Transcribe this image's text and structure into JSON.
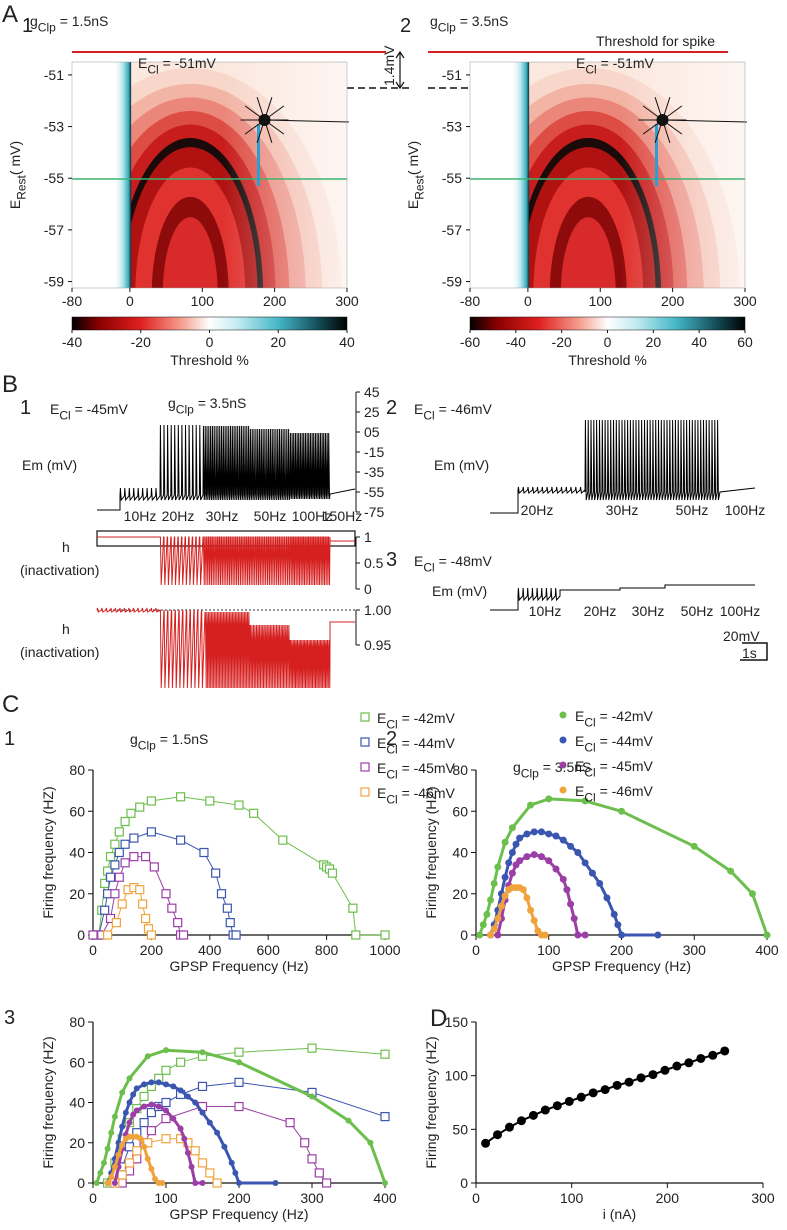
{
  "panel_labels": {
    "A": "A",
    "A1": "1",
    "A2": "2",
    "B": "B",
    "B1": "1",
    "B2": "2",
    "B3": "3",
    "C": "C",
    "C1": "1",
    "C2": "2",
    "C3": "3",
    "D": "D"
  },
  "annotations": {
    "threshold": "Threshold for spike",
    "shift": "1.4mV"
  },
  "scale_bar": {
    "voltage": "20mV",
    "time": "1s"
  },
  "chart_data": [
    {
      "type": "heatmap",
      "title": {
        "pre": "g",
        "sub": "Clp",
        "post": " = 1.5nS"
      },
      "annotation": {
        "pre": "E",
        "sub": "Cl",
        "post": " = -51mV"
      },
      "ylabel": {
        "pre": "E",
        "sub": "Rest",
        "post": "( mV)"
      },
      "xlim": [
        -80,
        300
      ],
      "xticks": [
        -80,
        0,
        100,
        200,
        300
      ],
      "ylim": [
        -59.25,
        -50.5
      ],
      "yticks": [
        -51,
        -53,
        -55,
        -57,
        -59
      ],
      "colorbar": {
        "label": "Threshold %",
        "lim": [
          -40,
          40
        ],
        "ticks": [
          -40,
          -20,
          0,
          20,
          40
        ]
      }
    },
    {
      "type": "heatmap",
      "title": {
        "pre": "g",
        "sub": "Clp",
        "post": " = 3.5nS"
      },
      "annotation": {
        "pre": "E",
        "sub": "Cl",
        "post": " = -51mV"
      },
      "ylabel": {
        "pre": "E",
        "sub": "Rest",
        "post": "( mV)"
      },
      "xlim": [
        -80,
        300
      ],
      "xticks": [
        -80,
        0,
        100,
        200,
        300
      ],
      "ylim": [
        -59.25,
        -50.5
      ],
      "yticks": [
        -51,
        -53,
        -55,
        -57,
        -59
      ],
      "colorbar": {
        "label": "Threshold %",
        "lim": [
          -60,
          60
        ],
        "ticks": [
          -60,
          -40,
          -20,
          0,
          20,
          40,
          60
        ]
      }
    },
    {
      "type": "trace",
      "title": {
        "pre": "E",
        "sub": "Cl",
        "post": " = -45mV"
      },
      "subtitle": {
        "pre": "g",
        "sub": "Clp",
        "post": " = 3.5nS"
      },
      "ylabel": "Em (mV)",
      "ylim": [
        -75,
        45
      ],
      "yticks": [
        45,
        25,
        {
          "value": 5,
          "label": "05"
        },
        -15,
        -35,
        -55,
        -75
      ],
      "stimulus_labels": [
        "10Hz",
        "20Hz",
        "30Hz",
        "50Hz",
        "100Hz",
        "150Hz"
      ]
    },
    {
      "type": "trace",
      "ylabel": [
        "h",
        "(inactivation)"
      ],
      "ylim": [
        0,
        1
      ],
      "yticks": [
        1,
        0.5,
        0
      ]
    },
    {
      "type": "trace",
      "ylabel": [
        "h",
        "(inactivation)"
      ],
      "ylim": [
        0.9,
        1.0
      ],
      "yticks": [
        {
          "value": 1,
          "label": "1.00"
        },
        0.95
      ]
    },
    {
      "type": "trace",
      "title": {
        "pre": "E",
        "sub": "Cl",
        "post": " = -46mV"
      },
      "ylabel": "Em (mV)",
      "stimulus_labels": [
        "20Hz",
        "30Hz",
        "50Hz",
        "100Hz"
      ]
    },
    {
      "type": "trace",
      "title": {
        "pre": "E",
        "sub": "Cl",
        "post": " = -48mV"
      },
      "ylabel": "Em (mV)",
      "stimulus_labels": [
        "10Hz",
        "20Hz",
        "30Hz",
        "50Hz",
        "100Hz"
      ]
    },
    {
      "type": "line",
      "title": {
        "pre": "g",
        "sub": "Clp",
        "post": " = 1.5nS"
      },
      "xlabel": "GPSP Frequency (Hz)",
      "ylabel": "Firing frequency (HZ)",
      "xlim": [
        0,
        1000
      ],
      "xticks": [
        0,
        200,
        400,
        600,
        800,
        1000
      ],
      "ylim": [
        0,
        80
      ],
      "yticks": [
        0,
        20,
        40,
        60,
        80
      ],
      "legend": "upper right",
      "series": [
        {
          "name": {
            "pre": "E",
            "sub": "Cl",
            "post": " = -42mV"
          },
          "color": "#6cbf4c",
          "marker": "open-square",
          "line_width": 1,
          "x": [
            20,
            30,
            40,
            50,
            60,
            75,
            90,
            110,
            130,
            160,
            200,
            300,
            400,
            500,
            550,
            650,
            790,
            800,
            810,
            820,
            890,
            900,
            1000
          ],
          "values": [
            0,
            12,
            25,
            31,
            38,
            44,
            50,
            55,
            59,
            62,
            65,
            67,
            65,
            63,
            59,
            46,
            34,
            33,
            32,
            30,
            13,
            0,
            0
          ]
        },
        {
          "name": {
            "pre": "E",
            "sub": "Cl",
            "post": " = -44mV"
          },
          "color": "#3b56b0",
          "marker": "open-square",
          "line_width": 1,
          "x": [
            10,
            20,
            40,
            50,
            60,
            75,
            90,
            110,
            140,
            200,
            300,
            380,
            420,
            440,
            460,
            470,
            480,
            490
          ],
          "values": [
            0,
            0,
            12,
            20,
            28,
            34,
            40,
            44,
            47,
            50,
            46,
            40,
            30,
            20,
            13,
            6,
            0,
            0
          ]
        },
        {
          "name": {
            "pre": "E",
            "sub": "Cl",
            "post": " = -45mV"
          },
          "color": "#9b3fa6",
          "marker": "open-square",
          "line_width": 1,
          "x": [
            0,
            30,
            60,
            75,
            90,
            110,
            140,
            180,
            210,
            250,
            270,
            290,
            300,
            310
          ],
          "values": [
            0,
            0,
            8,
            20,
            28,
            35,
            38,
            38,
            33,
            20,
            13,
            6,
            0,
            0
          ]
        },
        {
          "name": {
            "pre": "E",
            "sub": "Cl",
            "post": " = -46mV"
          },
          "color": "#f0a33b",
          "marker": "open-square",
          "line_width": 1,
          "x": [
            50,
            80,
            100,
            120,
            140,
            160,
            170,
            180,
            190,
            200
          ],
          "values": [
            0,
            6,
            15,
            22,
            23,
            22,
            15,
            8,
            3,
            0
          ]
        }
      ]
    },
    {
      "type": "line",
      "title": {
        "pre": "g",
        "sub": "Clp",
        "post": " = 3.5nS"
      },
      "xlabel": "GPSP Frequency (Hz)",
      "ylabel": "Firing frequency (HZ)",
      "xlim": [
        0,
        400
      ],
      "xticks": [
        0,
        100,
        200,
        300,
        400
      ],
      "ylim": [
        0,
        80
      ],
      "yticks": [
        0,
        20,
        40,
        60,
        80
      ],
      "legend": "upper right",
      "series": [
        {
          "name": {
            "pre": "E",
            "sub": "Cl",
            "post": " = -42mV"
          },
          "color": "#6cbf4c",
          "marker": "filled-circle",
          "line_width": 3,
          "x": [
            5,
            10,
            15,
            20,
            25,
            30,
            40,
            50,
            75,
            100,
            150,
            200,
            300,
            350,
            380,
            400
          ],
          "values": [
            0,
            5,
            10,
            17,
            25,
            33,
            45,
            52,
            63,
            66,
            65,
            60,
            43,
            31,
            20,
            0
          ]
        },
        {
          "name": {
            "pre": "E",
            "sub": "Cl",
            "post": " = -44mV"
          },
          "color": "#3b56b0",
          "marker": "filled-circle",
          "line_width": 3,
          "x": [
            20,
            25,
            30,
            35,
            40,
            45,
            50,
            55,
            60,
            70,
            80,
            90,
            100,
            110,
            120,
            130,
            140,
            150,
            160,
            170,
            180,
            190,
            195,
            200,
            250
          ],
          "values": [
            0,
            5,
            12,
            20,
            28,
            35,
            40,
            44,
            47,
            49,
            50,
            50,
            49,
            48,
            46,
            43,
            40,
            35,
            30,
            25,
            18,
            10,
            5,
            0,
            0
          ]
        },
        {
          "name": {
            "pre": "E",
            "sub": "Cl",
            "post": " = -45mV"
          },
          "color": "#9b3fa6",
          "marker": "filled-circle",
          "line_width": 3,
          "x": [
            30,
            35,
            40,
            45,
            50,
            55,
            60,
            70,
            80,
            90,
            100,
            110,
            120,
            125,
            130,
            135,
            140,
            150
          ],
          "values": [
            0,
            8,
            17,
            24,
            30,
            34,
            36,
            38,
            39,
            38,
            36,
            32,
            27,
            22,
            15,
            8,
            0,
            0
          ]
        },
        {
          "name": {
            "pre": "E",
            "sub": "Cl",
            "post": " = -46mV"
          },
          "color": "#f0a33b",
          "marker": "filled-circle",
          "line_width": 3,
          "x": [
            20,
            25,
            30,
            35,
            40,
            45,
            50,
            55,
            60,
            65,
            70,
            75,
            80,
            85,
            90,
            95
          ],
          "values": [
            0,
            3,
            8,
            14,
            19,
            22,
            23,
            23,
            23,
            22,
            18,
            12,
            7,
            2,
            0,
            0
          ]
        }
      ]
    },
    {
      "type": "line",
      "xlabel": "GPSP Frequency (Hz)",
      "ylabel": "Firing frequency (HZ)",
      "xlim": [
        0,
        400
      ],
      "xticks": [
        0,
        100,
        200,
        300,
        400
      ],
      "ylim": [
        0,
        80
      ],
      "yticks": [
        0,
        20,
        40,
        60,
        80
      ],
      "series": [
        {
          "color": "#6cbf4c",
          "marker": "open-square",
          "line_width": 1,
          "x": [
            20,
            30,
            40,
            50,
            60,
            70,
            80,
            90,
            100,
            120,
            150,
            200,
            300,
            400
          ],
          "values": [
            0,
            10,
            22,
            30,
            37,
            43,
            48,
            52,
            56,
            60,
            63,
            65,
            67,
            64
          ]
        },
        {
          "color": "#3b56b0",
          "marker": "open-square",
          "line_width": 1,
          "x": [
            30,
            40,
            50,
            60,
            70,
            80,
            90,
            100,
            120,
            150,
            200,
            300,
            400
          ],
          "values": [
            0,
            8,
            18,
            25,
            30,
            35,
            38,
            40,
            44,
            48,
            50,
            45,
            33
          ]
        },
        {
          "color": "#9b3fa6",
          "marker": "open-square",
          "line_width": 1,
          "x": [
            40,
            50,
            60,
            70,
            80,
            100,
            150,
            200,
            270,
            290,
            300,
            310,
            320
          ],
          "values": [
            0,
            6,
            12,
            20,
            26,
            32,
            38,
            38,
            30,
            20,
            12,
            5,
            0
          ]
        },
        {
          "color": "#f0a33b",
          "marker": "open-square",
          "line_width": 1,
          "x": [
            30,
            40,
            50,
            60,
            75,
            100,
            120,
            130,
            140,
            150,
            160,
            170
          ],
          "values": [
            0,
            4,
            10,
            16,
            20,
            22,
            22,
            20,
            16,
            10,
            5,
            0
          ]
        },
        {
          "color": "#6cbf4c",
          "marker": "filled-circle",
          "line_width": 3,
          "x": [
            5,
            10,
            15,
            20,
            25,
            30,
            40,
            50,
            75,
            100,
            150,
            200,
            300,
            350,
            380,
            400
          ],
          "values": [
            0,
            5,
            10,
            17,
            25,
            33,
            45,
            52,
            63,
            66,
            65,
            60,
            43,
            31,
            20,
            0
          ]
        },
        {
          "color": "#3b56b0",
          "marker": "filled-circle",
          "line_width": 3,
          "x": [
            20,
            25,
            30,
            35,
            40,
            45,
            50,
            55,
            60,
            70,
            80,
            90,
            100,
            110,
            120,
            130,
            140,
            150,
            160,
            170,
            180,
            190,
            195,
            200,
            250
          ],
          "values": [
            0,
            5,
            12,
            20,
            28,
            35,
            40,
            44,
            47,
            49,
            50,
            50,
            49,
            48,
            46,
            43,
            40,
            35,
            30,
            25,
            18,
            10,
            5,
            0,
            0
          ]
        },
        {
          "color": "#9b3fa6",
          "marker": "filled-circle",
          "line_width": 3,
          "x": [
            30,
            35,
            40,
            45,
            50,
            55,
            60,
            70,
            80,
            90,
            100,
            110,
            120,
            125,
            130,
            135,
            140,
            150
          ],
          "values": [
            0,
            8,
            17,
            24,
            30,
            34,
            36,
            38,
            39,
            38,
            36,
            32,
            27,
            22,
            15,
            8,
            0,
            0
          ]
        },
        {
          "color": "#f0a33b",
          "marker": "filled-circle",
          "line_width": 3,
          "x": [
            20,
            25,
            30,
            35,
            40,
            45,
            50,
            55,
            60,
            65,
            70,
            75,
            80,
            85,
            90,
            95
          ],
          "values": [
            0,
            3,
            8,
            14,
            19,
            22,
            23,
            23,
            23,
            22,
            18,
            12,
            7,
            2,
            0,
            0
          ]
        }
      ]
    },
    {
      "type": "line",
      "xlabel": "i (nA)",
      "ylabel": "Firing frequency (HZ)",
      "xlim": [
        0,
        300
      ],
      "xticks": [
        0,
        100,
        200,
        300
      ],
      "ylim": [
        0,
        150
      ],
      "yticks": [
        0,
        50,
        100,
        150
      ],
      "series": [
        {
          "color": "#000000",
          "marker": "big-circle",
          "line_width": 2,
          "x": [
            10,
            22.5,
            35,
            47.5,
            60,
            72.5,
            85,
            97.5,
            110,
            122.5,
            135,
            147.5,
            160,
            172.5,
            185,
            197.5,
            210,
            222.5,
            235,
            247.5,
            260
          ],
          "values": [
            37,
            45,
            52,
            58,
            63,
            68,
            72,
            76,
            80,
            84,
            87,
            91,
            94,
            98,
            101,
            105,
            109,
            112,
            116,
            119,
            123
          ]
        }
      ]
    }
  ]
}
